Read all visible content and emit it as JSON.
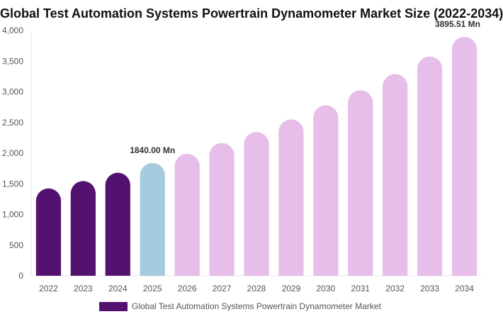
{
  "chart_data": {
    "type": "bar",
    "title": "Global Test Automation Systems Powertrain Dynamometer Market Size (2022-2034)",
    "xlabel": "",
    "ylabel": "",
    "categories": [
      "2022",
      "2023",
      "2024",
      "2025",
      "2026",
      "2027",
      "2028",
      "2029",
      "2030",
      "2031",
      "2032",
      "2033",
      "2034"
    ],
    "series": [
      {
        "name": "Global Test Automation Systems Powertrain Dynamometer Market",
        "values": [
          1425,
          1545,
          1680,
          1840,
          1990,
          2165,
          2345,
          2550,
          2780,
          3025,
          3290,
          3575,
          3895.51
        ]
      }
    ],
    "ylim": [
      0,
      4000
    ],
    "yticks": [
      0,
      500,
      1000,
      1500,
      2000,
      2500,
      3000,
      3500,
      4000
    ],
    "ytick_labels": [
      "0",
      "500",
      "1,000",
      "1,500",
      "2,000",
      "2,500",
      "3,000",
      "3,500",
      "4,000"
    ],
    "data_labels": [
      {
        "category": "2025",
        "text": "1840.00 Mn"
      },
      {
        "category": "2034",
        "text": "3895.51 Mn"
      }
    ],
    "colors": {
      "historical": "#531270",
      "base_year": "#a5cbdf",
      "forecast": "#e7bde9",
      "legend": "#531270"
    },
    "historical_categories": [
      "2022",
      "2023",
      "2024"
    ],
    "base_category": "2025",
    "grid": false,
    "legend_position": "bottom"
  }
}
